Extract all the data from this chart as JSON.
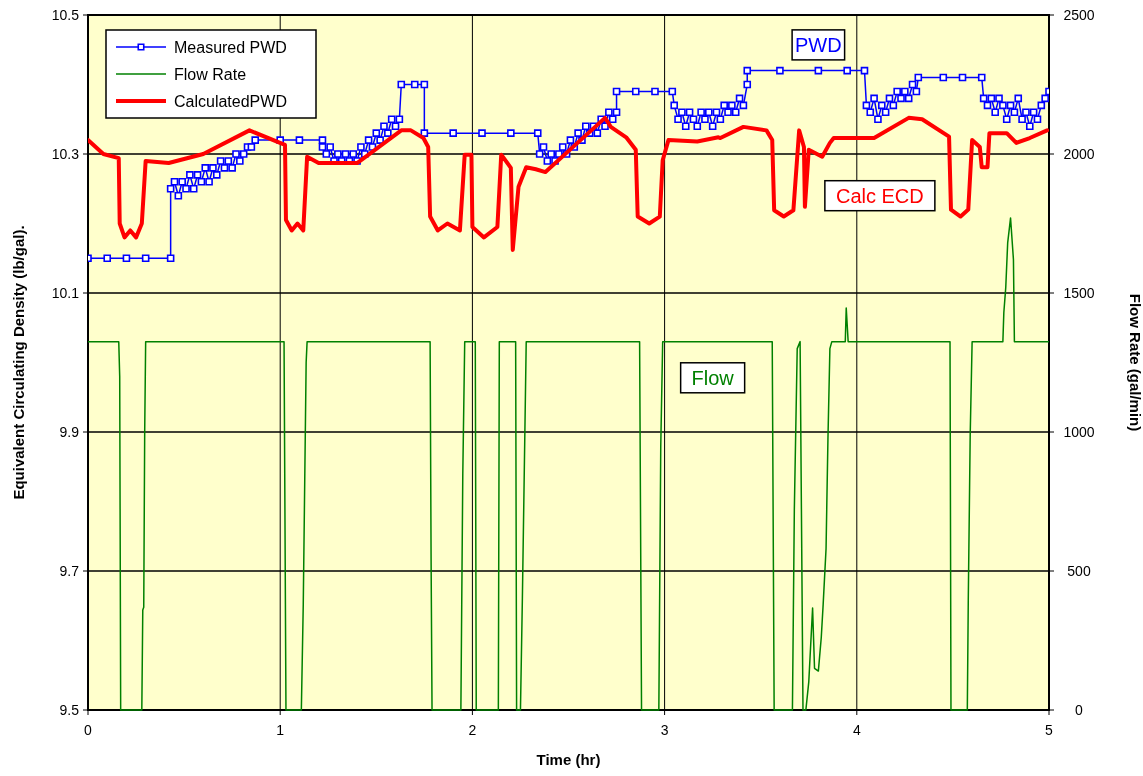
{
  "chart_data": {
    "type": "line",
    "xlabel": "Time (hr)",
    "ylabel": "Equivalent Circulating Density (lb/gal).",
    "y2label": "Flow Rate (gal/min)",
    "xlim": [
      0,
      5
    ],
    "xticks": [
      0,
      1,
      2,
      3,
      4,
      5
    ],
    "ylim": [
      9.5,
      10.5
    ],
    "yticks": [
      9.5,
      9.7,
      9.9,
      10.1,
      10.3,
      10.5
    ],
    "y2lim": [
      0,
      2500
    ],
    "y2ticks": [
      0,
      500,
      1000,
      1500,
      2000,
      2500
    ],
    "grid": true,
    "legend": "top left",
    "series": [
      {
        "name": "Measured PWD",
        "color": "#0000ff",
        "marker": "square",
        "x": [
          0,
          0.1,
          0.2,
          0.3,
          0.43,
          0.43,
          0.45,
          0.47,
          0.49,
          0.51,
          0.53,
          0.55,
          0.57,
          0.59,
          0.61,
          0.63,
          0.65,
          0.67,
          0.69,
          0.71,
          0.73,
          0.75,
          0.77,
          0.79,
          0.81,
          0.83,
          0.85,
          0.87,
          1.0,
          1.1,
          1.22,
          1.22,
          1.24,
          1.26,
          1.28,
          1.3,
          1.32,
          1.34,
          1.36,
          1.38,
          1.4,
          1.42,
          1.44,
          1.46,
          1.48,
          1.5,
          1.52,
          1.54,
          1.56,
          1.58,
          1.6,
          1.62,
          1.63,
          1.7,
          1.75,
          1.75,
          1.9,
          2.05,
          2.2,
          2.34,
          2.35,
          2.37,
          2.39,
          2.41,
          2.43,
          2.45,
          2.47,
          2.49,
          2.51,
          2.53,
          2.55,
          2.57,
          2.59,
          2.61,
          2.63,
          2.65,
          2.67,
          2.69,
          2.71,
          2.73,
          2.75,
          2.75,
          2.85,
          2.95,
          3.04,
          3.05,
          3.07,
          3.09,
          3.11,
          3.13,
          3.15,
          3.17,
          3.19,
          3.21,
          3.23,
          3.25,
          3.27,
          3.29,
          3.31,
          3.33,
          3.35,
          3.37,
          3.39,
          3.41,
          3.43,
          3.43,
          3.6,
          3.8,
          3.95,
          4.04,
          4.05,
          4.07,
          4.09,
          4.11,
          4.13,
          4.15,
          4.17,
          4.19,
          4.21,
          4.23,
          4.25,
          4.27,
          4.29,
          4.31,
          4.32,
          4.45,
          4.55,
          4.65,
          4.66,
          4.68,
          4.7,
          4.72,
          4.74,
          4.76,
          4.78,
          4.8,
          4.82,
          4.84,
          4.86,
          4.88,
          4.9,
          4.92,
          4.94,
          4.96,
          4.98,
          5.0
        ],
        "values": [
          10.15,
          10.15,
          10.15,
          10.15,
          10.15,
          10.25,
          10.26,
          10.24,
          10.26,
          10.25,
          10.27,
          10.25,
          10.27,
          10.26,
          10.28,
          10.26,
          10.28,
          10.27,
          10.29,
          10.28,
          10.29,
          10.28,
          10.3,
          10.29,
          10.3,
          10.31,
          10.31,
          10.32,
          10.32,
          10.32,
          10.32,
          10.31,
          10.3,
          10.31,
          10.29,
          10.3,
          10.29,
          10.3,
          10.29,
          10.3,
          10.29,
          10.31,
          10.3,
          10.32,
          10.31,
          10.33,
          10.32,
          10.34,
          10.33,
          10.35,
          10.34,
          10.35,
          10.4,
          10.4,
          10.4,
          10.33,
          10.33,
          10.33,
          10.33,
          10.33,
          10.3,
          10.31,
          10.29,
          10.3,
          10.29,
          10.3,
          10.31,
          10.3,
          10.32,
          10.31,
          10.33,
          10.32,
          10.34,
          10.33,
          10.34,
          10.33,
          10.35,
          10.34,
          10.36,
          10.35,
          10.36,
          10.39,
          10.39,
          10.39,
          10.39,
          10.37,
          10.35,
          10.36,
          10.34,
          10.36,
          10.35,
          10.34,
          10.36,
          10.35,
          10.36,
          10.34,
          10.36,
          10.35,
          10.37,
          10.36,
          10.37,
          10.36,
          10.38,
          10.37,
          10.4,
          10.42,
          10.42,
          10.42,
          10.42,
          10.42,
          10.37,
          10.36,
          10.38,
          10.35,
          10.37,
          10.36,
          10.38,
          10.37,
          10.39,
          10.38,
          10.39,
          10.38,
          10.4,
          10.39,
          10.41,
          10.41,
          10.41,
          10.41,
          10.38,
          10.37,
          10.38,
          10.36,
          10.38,
          10.37,
          10.35,
          10.37,
          10.36,
          10.38,
          10.35,
          10.36,
          10.34,
          10.36,
          10.35,
          10.37,
          10.38,
          10.39
        ]
      },
      {
        "name": "Flow Rate",
        "color": "#008000",
        "marker": "none",
        "axis": "y2",
        "x": [
          0,
          0.16,
          0.165,
          0.17,
          0.28,
          0.285,
          0.29,
          0.295,
          0.3,
          1.02,
          1.03,
          1.11,
          1.12,
          1.135,
          1.14,
          1.78,
          1.785,
          1.79,
          1.94,
          1.95,
          1.96,
          2.015,
          2.02,
          2.135,
          2.14,
          2.225,
          2.23,
          2.25,
          2.26,
          2.28,
          2.87,
          2.88,
          2.97,
          2.98,
          2.99,
          3.56,
          3.57,
          3.665,
          3.675,
          3.69,
          3.705,
          3.72,
          3.735,
          3.75,
          3.77,
          3.78,
          3.8,
          3.815,
          3.825,
          3.84,
          3.85,
          3.86,
          3.87,
          3.94,
          3.945,
          3.955,
          4.485,
          4.49,
          4.575,
          4.58,
          4.59,
          4.6,
          4.76,
          4.765,
          4.775,
          4.785,
          4.8,
          4.815,
          4.82,
          5
        ],
        "values": [
          1325,
          1325,
          1200,
          0,
          0,
          360,
          370,
          1000,
          1325,
          1325,
          0,
          0,
          380,
          1250,
          1325,
          1325,
          550,
          0,
          0,
          850,
          1325,
          1325,
          0,
          0,
          1325,
          1325,
          0,
          0,
          400,
          1325,
          1325,
          0,
          0,
          950,
          1325,
          1325,
          0,
          0,
          720,
          1300,
          1325,
          0,
          0,
          100,
          367,
          150,
          140,
          260,
          380,
          580,
          980,
          1300,
          1325,
          1325,
          1446,
          1325,
          1325,
          0,
          0,
          395,
          990,
          1325,
          1325,
          1430,
          1520,
          1680,
          1770,
          1620,
          1325,
          1325
        ]
      },
      {
        "name": "CalculatedPWD",
        "color": "#ff0000",
        "marker": "none",
        "x": [
          0,
          0.08,
          0.16,
          0.165,
          0.19,
          0.22,
          0.25,
          0.28,
          0.3,
          0.42,
          0.6,
          0.84,
          1.025,
          1.03,
          1.06,
          1.09,
          1.12,
          1.14,
          1.2,
          1.4,
          1.63,
          1.68,
          1.745,
          1.77,
          1.78,
          1.82,
          1.87,
          1.935,
          1.96,
          1.995,
          2.0,
          2.06,
          2.13,
          2.15,
          2.2,
          2.21,
          2.24,
          2.28,
          2.33,
          2.38,
          2.69,
          2.72,
          2.8,
          2.85,
          2.86,
          2.92,
          2.975,
          2.99,
          3.02,
          3.17,
          3.28,
          3.29,
          3.41,
          3.53,
          3.56,
          3.57,
          3.62,
          3.67,
          3.7,
          3.725,
          3.73,
          3.75,
          3.82,
          3.86,
          3.88,
          4.09,
          4.27,
          4.34,
          4.48,
          4.49,
          4.54,
          4.58,
          4.6,
          4.64,
          4.65,
          4.68,
          4.69,
          4.78,
          4.83,
          4.9,
          4.99
        ],
        "values": [
          10.32,
          10.3,
          10.294,
          10.2,
          10.18,
          10.19,
          10.18,
          10.2,
          10.29,
          10.287,
          10.3,
          10.334,
          10.313,
          10.205,
          10.19,
          10.2,
          10.19,
          10.296,
          10.287,
          10.287,
          10.334,
          10.334,
          10.323,
          10.31,
          10.21,
          10.19,
          10.2,
          10.19,
          10.299,
          10.299,
          10.195,
          10.18,
          10.195,
          10.299,
          10.28,
          10.162,
          10.253,
          10.281,
          10.278,
          10.274,
          10.352,
          10.339,
          10.324,
          10.306,
          10.21,
          10.2,
          10.21,
          10.291,
          10.32,
          10.318,
          10.324,
          10.323,
          10.339,
          10.334,
          10.32,
          10.219,
          10.21,
          10.219,
          10.334,
          10.31,
          10.224,
          10.306,
          10.296,
          10.316,
          10.323,
          10.323,
          10.352,
          10.35,
          10.325,
          10.22,
          10.21,
          10.22,
          10.32,
          10.31,
          10.281,
          10.281,
          10.33,
          10.33,
          10.316,
          10.323,
          10.334
        ]
      }
    ],
    "annotations": [
      "PWD",
      "Flow",
      "Calc ECD"
    ]
  }
}
